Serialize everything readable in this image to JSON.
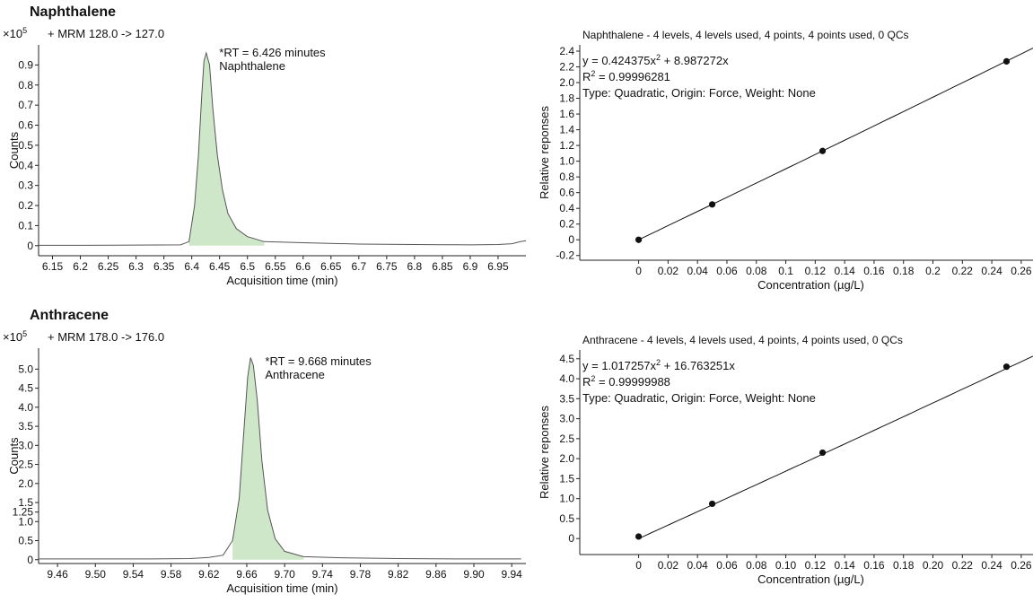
{
  "chart_data": [
    {
      "type": "line",
      "title": "Naphthalene",
      "trace_label": "+ MRM 128.0 -> 127.0",
      "y_multiplier": {
        "base": "×10",
        "exp": "5"
      },
      "xlabel": "Acquisition time (min)",
      "ylabel": "Counts",
      "xlim": [
        6.125,
        7.0
      ],
      "ylim": [
        -0.05,
        1.0
      ],
      "xticks": [
        "6.15",
        "6.2",
        "6.25",
        "6.3",
        "6.35",
        "6.4",
        "6.45",
        "6.5",
        "6.55",
        "6.6",
        "6.65",
        "6.7",
        "6.75",
        "6.8",
        "6.85",
        "6.9",
        "6.95"
      ],
      "yticks": [
        "0",
        "0.1",
        "0.2",
        "0.3",
        "0.4",
        "0.5",
        "0.6",
        "0.7",
        "0.8",
        "0.9"
      ],
      "annotation": [
        "*RT = 6.426 minutes",
        "Naphthalene"
      ],
      "annotation_at": [
        6.43,
        0.96
      ],
      "fill_range": [
        6.395,
        6.53
      ],
      "x": [
        6.125,
        6.2,
        6.3,
        6.38,
        6.395,
        6.405,
        6.412,
        6.418,
        6.422,
        6.426,
        6.432,
        6.438,
        6.446,
        6.455,
        6.465,
        6.48,
        6.5,
        6.53,
        6.6,
        6.7,
        6.8,
        6.85,
        6.9,
        6.95,
        6.975,
        6.99,
        7.0
      ],
      "y": [
        0.002,
        0.002,
        0.003,
        0.004,
        0.02,
        0.2,
        0.45,
        0.75,
        0.92,
        0.96,
        0.9,
        0.68,
        0.45,
        0.28,
        0.16,
        0.085,
        0.045,
        0.02,
        0.015,
        0.008,
        0.006,
        0.005,
        0.004,
        0.006,
        0.01,
        0.02,
        0.025
      ],
      "fill_color": "#cfe7c9",
      "line_color": "#555555"
    },
    {
      "type": "scatter",
      "title": "Naphthalene - 4 levels, 4 levels used, 4 points, 4 points used, 0 QCs",
      "equation": {
        "prefix": "y = 0.424375x",
        "sup": "2",
        "suffix": " + 8.987272x"
      },
      "r2": {
        "prefix": "R",
        "sup": "2",
        "suffix": " = 0.99996281"
      },
      "fit_type": "Type: Quadratic, Origin: Force, Weight: None",
      "xlabel": "Concentration (µg/L)",
      "ylabel": "Relative reponses",
      "xlim": [
        -0.04,
        0.268
      ],
      "ylim": [
        -0.26,
        2.48
      ],
      "xticks": [
        "0",
        "0.02",
        "0.04",
        "0.06",
        "0.08",
        "0.1",
        "0.12",
        "0.14",
        "0.16",
        "0.18",
        "0.2",
        "0.22",
        "0.24",
        "0.26"
      ],
      "yticks": [
        "-0.2",
        "0",
        "0.2",
        "0.4",
        "0.6",
        "0.8",
        "1.0",
        "1.2",
        "1.4",
        "1.6",
        "1.8",
        "2.0",
        "2.2",
        "2.4"
      ],
      "x": [
        0,
        0.05,
        0.125,
        0.25
      ],
      "y": [
        0.0,
        0.45,
        1.13,
        2.27
      ],
      "fit": {
        "a": 0.424375,
        "b": 8.987272
      },
      "line_color": "#111111"
    },
    {
      "type": "line",
      "title": "Anthracene",
      "trace_label": "+ MRM 178.0 -> 176.0",
      "y_multiplier": {
        "base": "×10",
        "exp": "5"
      },
      "xlabel": "Acquisition time (min)",
      "ylabel": "Counts",
      "xlim": [
        9.44,
        9.955
      ],
      "ylim": [
        -0.1,
        5.55
      ],
      "xticks": [
        "9.46",
        "9.50",
        "9.54",
        "9.58",
        "9.62",
        "9.66",
        "9.70",
        "9.74",
        "9.78",
        "9.82",
        "9.86",
        "9.90",
        "9.94"
      ],
      "yticks": [
        "0",
        "0.5",
        "1.0",
        "1.25",
        "1.5",
        "2.0",
        "2.5",
        "3.0",
        "3.5",
        "4.0",
        "4.5",
        "5.0"
      ],
      "annotation": [
        "*RT = 9.668 minutes",
        "Anthracene"
      ],
      "annotation_at": [
        9.668,
        5.2
      ],
      "fill_range": [
        9.645,
        9.72
      ],
      "x": [
        9.44,
        9.5,
        9.56,
        9.6,
        9.62,
        9.635,
        9.645,
        9.652,
        9.657,
        9.661,
        9.664,
        9.667,
        9.671,
        9.676,
        9.682,
        9.69,
        9.7,
        9.72,
        9.76,
        9.82,
        9.88,
        9.95
      ],
      "y": [
        0.02,
        0.02,
        0.02,
        0.03,
        0.06,
        0.12,
        0.5,
        1.6,
        3.4,
        4.8,
        5.3,
        5.1,
        4.2,
        2.6,
        1.3,
        0.55,
        0.22,
        0.08,
        0.05,
        0.03,
        0.02,
        0.02
      ],
      "fill_color": "#cfe7c9",
      "line_color": "#555555"
    },
    {
      "type": "scatter",
      "title": "Anthracene - 4 levels, 4 levels used, 4 points, 4 points used, 0 QCs",
      "equation": {
        "prefix": "y = 1.017257x",
        "sup": "2",
        "suffix": " + 16.763251x"
      },
      "r2": {
        "prefix": "R",
        "sup": "2",
        "suffix": " = 0.99999988"
      },
      "fit_type": "Type: Quadratic, Origin: Force, Weight: None",
      "xlabel": "Concentration (µg/L)",
      "ylabel": "Relative reponses",
      "xlim": [
        -0.04,
        0.268
      ],
      "ylim": [
        -0.4,
        4.72
      ],
      "xticks": [
        "0",
        "0.02",
        "0.04",
        "0.06",
        "0.08",
        "0.10",
        "0.12",
        "0.14",
        "0.16",
        "0.18",
        "0.20",
        "0.22",
        "0.24",
        "0.26"
      ],
      "yticks": [
        "0",
        "0.5",
        "1.0",
        "1.5",
        "2.0",
        "2.5",
        "3.0",
        "3.5",
        "4.0",
        "4.5"
      ],
      "x": [
        0,
        0.05,
        0.125,
        0.25
      ],
      "y": [
        0.05,
        0.87,
        2.15,
        4.3
      ],
      "fit": {
        "a": 1.017257,
        "b": 16.763251
      },
      "line_color": "#111111"
    }
  ]
}
